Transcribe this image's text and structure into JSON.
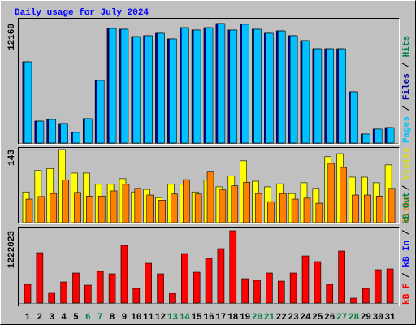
{
  "title": "Daily usage for July 2024",
  "separator": "/",
  "chart_data": [
    {
      "type": "bar",
      "ylim": [
        0,
        12160
      ],
      "series": [
        {
          "name": "Hits",
          "color": "#008040",
          "values": [
            8270,
            2230,
            2400,
            1990,
            1080,
            2480,
            6370,
            11660,
            11580,
            10830,
            10920,
            11170,
            10590,
            11740,
            11500,
            11740,
            12160,
            11500,
            12080,
            11580,
            11170,
            11410,
            10920,
            10420,
            9590,
            9590,
            9590,
            5210,
            910,
            1410,
            1570
          ]
        },
        {
          "name": "Files",
          "color": "#0000a0",
          "values": [
            8270,
            2230,
            2400,
            1990,
            1080,
            2480,
            6370,
            11660,
            11580,
            10830,
            10920,
            11170,
            10590,
            11740,
            11500,
            11740,
            12160,
            11500,
            12080,
            11580,
            11170,
            11410,
            10920,
            10420,
            9590,
            9590,
            9590,
            5210,
            910,
            1410,
            1570
          ]
        },
        {
          "name": "Pages",
          "color": "#00c0ff",
          "values": [
            8270,
            2230,
            2400,
            1990,
            1080,
            2480,
            6370,
            11660,
            11580,
            10830,
            10920,
            11170,
            10590,
            11740,
            11500,
            11740,
            12160,
            11500,
            12080,
            11580,
            11170,
            11410,
            10920,
            10420,
            9590,
            9590,
            9590,
            5210,
            910,
            1410,
            1570
          ]
        }
      ]
    },
    {
      "type": "bar",
      "ylim": [
        0,
        143
      ],
      "series": [
        {
          "name": "Sites",
          "color": "#ff8000",
          "values": [
            46,
            51,
            57,
            83,
            59,
            52,
            52,
            62,
            75,
            67,
            54,
            44,
            56,
            84,
            56,
            99,
            64,
            72,
            79,
            57,
            41,
            57,
            46,
            48,
            38,
            116,
            108,
            54,
            54,
            52,
            67
          ]
        },
        {
          "name": "Visits",
          "color": "#ffff00",
          "values": [
            60,
            102,
            106,
            143,
            97,
            97,
            75,
            75,
            86,
            60,
            65,
            49,
            75,
            75,
            60,
            83,
            70,
            91,
            121,
            81,
            70,
            76,
            57,
            78,
            67,
            129,
            135,
            89,
            89,
            78,
            113
          ]
        }
      ]
    },
    {
      "type": "bar",
      "ylim": [
        0,
        1222023
      ],
      "categories": [
        "1",
        "2",
        "3",
        "4",
        "5",
        "6",
        "7",
        "8",
        "9",
        "10",
        "11",
        "12",
        "13",
        "14",
        "15",
        "16",
        "17",
        "18",
        "19",
        "20",
        "21",
        "22",
        "23",
        "24",
        "25",
        "26",
        "27",
        "28",
        "29",
        "30",
        "31"
      ],
      "category_colors": [
        "#000000",
        "#000000",
        "#000000",
        "#000000",
        "#000000",
        "#008040",
        "#008040",
        "#000000",
        "#000000",
        "#000000",
        "#000000",
        "#000000",
        "#008040",
        "#008040",
        "#000000",
        "#000000",
        "#000000",
        "#000000",
        "#000000",
        "#008040",
        "#008040",
        "#000000",
        "#000000",
        "#000000",
        "#000000",
        "#000000",
        "#008040",
        "#008040",
        "#000000",
        "#000000",
        "#000000"
      ],
      "series": [
        {
          "name": "kB F",
          "color": "#ff0000",
          "values": [
            315800,
            851300,
            178500,
            357000,
            508000,
            302100,
            535500,
            494300,
            974800,
            247100,
            672800,
            494300,
            164800,
            837500,
            521700,
            755200,
            919900,
            1222023,
            411900,
            384400,
            508000,
            370700,
            508000,
            796300,
            700200,
            315800,
            878700,
            82400,
            247100,
            562900,
            576700
          ]
        },
        {
          "name": "kB In",
          "color": "#0000ff",
          "values": [
            0,
            0,
            0,
            0,
            0,
            0,
            0,
            0,
            0,
            0,
            0,
            0,
            0,
            0,
            0,
            0,
            0,
            0,
            0,
            0,
            0,
            0,
            0,
            0,
            0,
            0,
            0,
            0,
            0,
            0,
            0
          ]
        },
        {
          "name": "kB Out",
          "color": "#008040",
          "values": [
            0,
            0,
            0,
            0,
            0,
            0,
            0,
            0,
            0,
            0,
            0,
            0,
            0,
            0,
            0,
            0,
            0,
            0,
            0,
            0,
            0,
            0,
            0,
            0,
            0,
            0,
            0,
            0,
            0,
            0,
            0
          ]
        }
      ]
    }
  ]
}
